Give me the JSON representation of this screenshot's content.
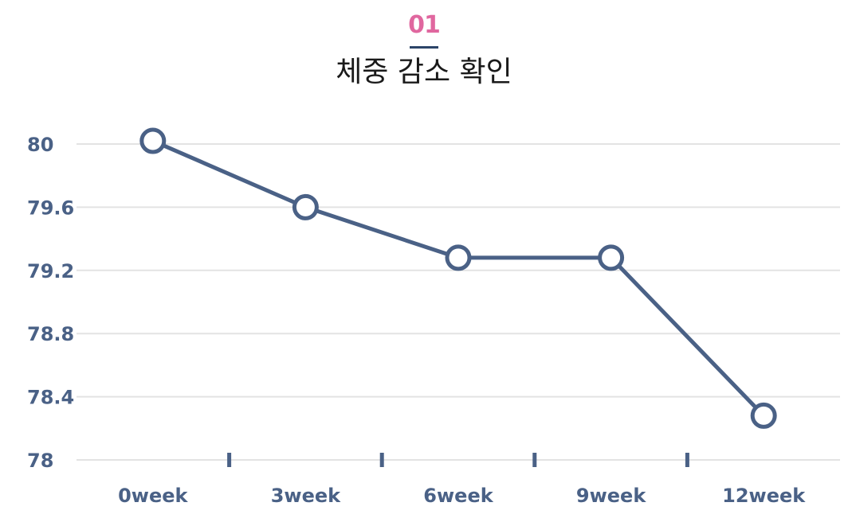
{
  "header": {
    "number": "01",
    "title": "체중 감소 확인"
  },
  "colors": {
    "accent": "#e0679f",
    "line": "#4a6186",
    "grid": "#e3e3e3",
    "axis_text": "#4a6186",
    "divider": "#2c4468"
  },
  "chart_data": {
    "type": "line",
    "title": "체중 감소 확인",
    "categories": [
      "0week",
      "3week",
      "6week",
      "9week",
      "12week"
    ],
    "values": [
      80.02,
      79.6,
      79.28,
      79.28,
      78.28
    ],
    "y_ticks": [
      "78",
      "78.4",
      "78.8",
      "79.2",
      "79.6",
      "80"
    ],
    "ylim": [
      78,
      80
    ],
    "xlabel": "",
    "ylabel": "",
    "grid": true,
    "markers": "hollow-circle"
  }
}
